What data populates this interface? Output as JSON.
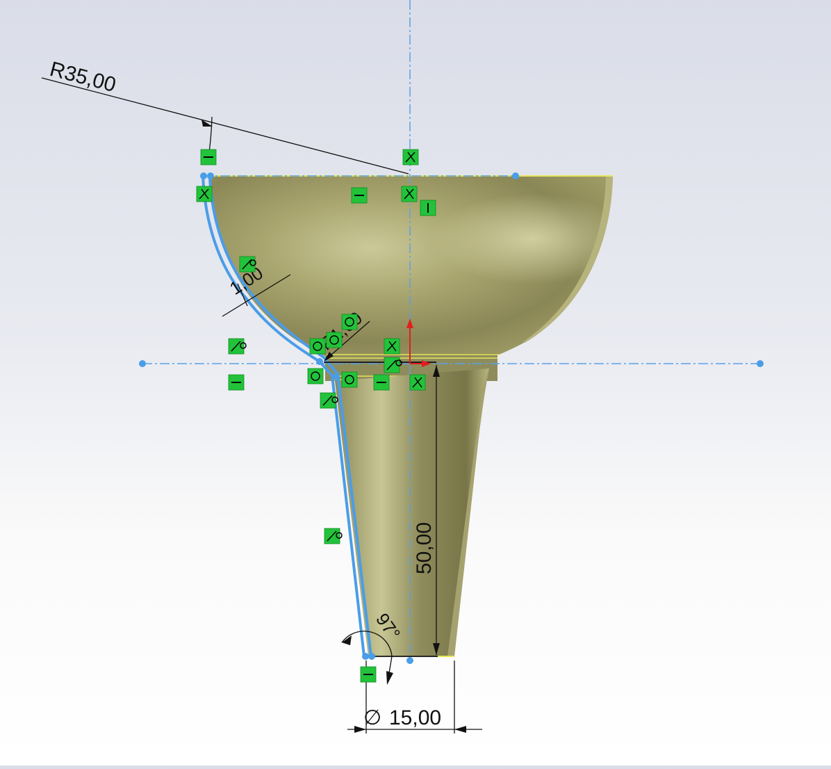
{
  "cad_sketch": {
    "dimensions": {
      "radius_top": "R35,00",
      "offset_thickness": "1,00",
      "fillet_radius": "R1,00",
      "height": "50,00",
      "angle": "97°",
      "diameter_symbol": "∅",
      "diameter": "15,00"
    },
    "relation_icons": {
      "horizontal": "horizontal-relation-icon",
      "vertical": "vertical-relation-icon",
      "coincident": "coincident-relation-icon",
      "concentric": "concentric-relation-icon",
      "tangent": "tangent-relation-icon"
    },
    "colors": {
      "sketch_line": "#4a9de8",
      "centerline": "#5aa0e6",
      "model_body": "#9c9a62",
      "model_edge": "#e6e65a",
      "relation_bg": "#22c33a",
      "origin_x": "#e21e1e",
      "origin_y": "#e21e1e",
      "dimension_line": "#111111"
    }
  }
}
